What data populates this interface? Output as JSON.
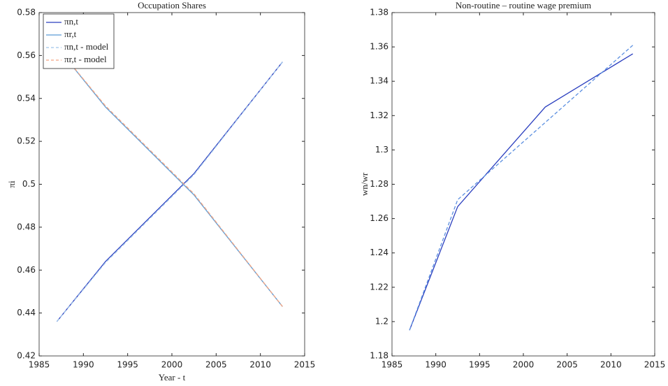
{
  "chart_data": [
    {
      "type": "line",
      "title": "Occupation Shares",
      "x_label": "Year - t",
      "y_label": "πi",
      "x": [
        1987,
        1992.5,
        2002.5,
        2012.5
      ],
      "series": [
        {
          "name": "πn,t",
          "color": "#2b3fbf",
          "dash": false,
          "values": [
            0.436,
            0.464,
            0.505,
            0.557
          ]
        },
        {
          "name": "πr,t",
          "color": "#5b9bd5",
          "dash": false,
          "values": [
            0.564,
            0.536,
            0.495,
            0.443
          ]
        },
        {
          "name": "πn,t - model",
          "color": "#9fc3ea",
          "dash": true,
          "values": [
            0.436,
            0.4635,
            0.5045,
            0.557
          ]
        },
        {
          "name": "πr,t - model",
          "color": "#f4a582",
          "dash": true,
          "values": [
            0.564,
            0.5365,
            0.4955,
            0.443
          ]
        }
      ],
      "xlim": [
        1985,
        2015
      ],
      "xticks": [
        1985,
        1990,
        1995,
        2000,
        2005,
        2010,
        2015
      ],
      "ylim": [
        0.42,
        0.58
      ],
      "yticks": [
        0.42,
        0.44,
        0.46,
        0.48,
        0.5,
        0.52,
        0.54,
        0.56,
        0.58
      ],
      "legend": "upper-left"
    },
    {
      "type": "line",
      "title": "Non-routine – routine wage premium",
      "y_label": "wn/wr",
      "x": [
        1987,
        1992.5,
        2002.5,
        2012.5
      ],
      "series": [
        {
          "color": "#2b3fbf",
          "dash": false,
          "values": [
            1.195,
            1.267,
            1.325,
            1.356
          ]
        },
        {
          "color": "#5b8fe0",
          "dash": true,
          "values": [
            1.195,
            1.271,
            1.316,
            1.361
          ]
        }
      ],
      "xlim": [
        1985,
        2015
      ],
      "xticks": [
        1985,
        1990,
        1995,
        2000,
        2005,
        2010,
        2015
      ],
      "ylim": [
        1.18,
        1.38
      ],
      "yticks": [
        1.18,
        1.2,
        1.22,
        1.24,
        1.26,
        1.28,
        1.3,
        1.32,
        1.34,
        1.36,
        1.38
      ]
    }
  ]
}
